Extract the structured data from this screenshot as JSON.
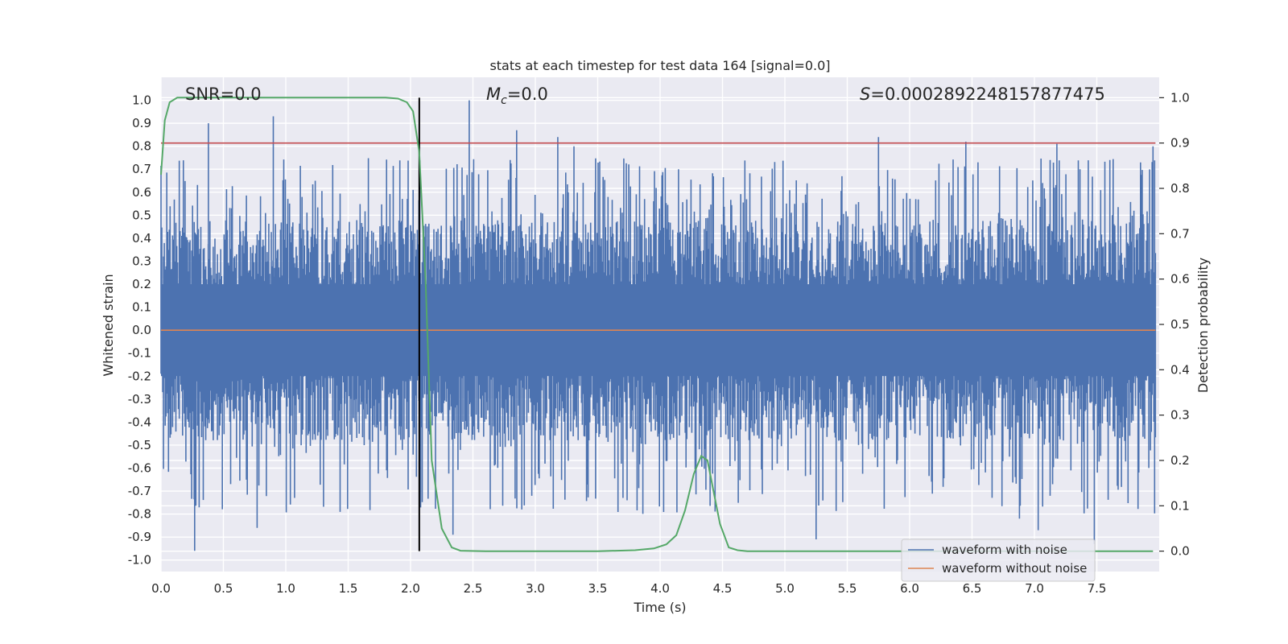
{
  "chart_data": {
    "type": "line",
    "title": "stats at each timestep for test data 164 [signal=0.0]",
    "xlabel": "Time (s)",
    "ylabel_left": "Whitened strain",
    "ylabel_right": "Detection probability",
    "xlim": [
      0.0,
      8.0
    ],
    "ylim_left": [
      -1.05,
      1.1
    ],
    "ylim_right": [
      -0.045,
      1.045
    ],
    "x_ticks": [
      "0.0",
      "0.5",
      "1.0",
      "1.5",
      "2.0",
      "2.5",
      "3.0",
      "3.5",
      "4.0",
      "4.5",
      "5.0",
      "5.5",
      "6.0",
      "6.5",
      "7.0",
      "7.5"
    ],
    "x_tick_values": [
      0.0,
      0.5,
      1.0,
      1.5,
      2.0,
      2.5,
      3.0,
      3.5,
      4.0,
      4.5,
      5.0,
      5.5,
      6.0,
      6.5,
      7.0,
      7.5
    ],
    "y_left_ticks": [
      "1.0",
      "0.9",
      "0.8",
      "0.7",
      "0.6",
      "0.5",
      "0.4",
      "0.3",
      "0.2",
      "0.1",
      "0.0",
      "-0.1",
      "-0.2",
      "-0.3",
      "-0.4",
      "-0.5",
      "-0.6",
      "-0.7",
      "-0.8",
      "-0.9",
      "-1.0"
    ],
    "y_left_tick_values": [
      1.0,
      0.9,
      0.8,
      0.7,
      0.6,
      0.5,
      0.4,
      0.3,
      0.2,
      0.1,
      0.0,
      -0.1,
      -0.2,
      -0.3,
      -0.4,
      -0.5,
      -0.6,
      -0.7,
      -0.8,
      -0.9,
      -1.0
    ],
    "y_right_ticks": [
      "1.0",
      "0.9",
      "0.8",
      "0.7",
      "0.6",
      "0.5",
      "0.4",
      "0.3",
      "0.2",
      "0.1",
      "0.0"
    ],
    "y_right_tick_values": [
      1.0,
      0.9,
      0.8,
      0.7,
      0.6,
      0.5,
      0.4,
      0.3,
      0.2,
      0.1,
      0.0
    ],
    "grid": true,
    "legend_position": "lower-right",
    "annotations": {
      "snr": "SNR=0.0",
      "mc_symbol": "M",
      "mc_sub": "c",
      "mc_value": "=0.0",
      "s_symbol": "S",
      "s_value": "=0.0002892248157877475"
    },
    "series": [
      {
        "name": "waveform with noise",
        "color": "#4c72b0",
        "description_kind": "noise",
        "sample_count": 1200,
        "band_envelope": {
          "typical_high": 0.4,
          "typical_low": -0.4
        },
        "peaks": [
          [
            0.38,
            0.9
          ],
          [
            0.9,
            0.93
          ],
          [
            0.27,
            -0.96
          ],
          [
            0.77,
            -0.86
          ],
          [
            2.47,
            1.0
          ],
          [
            2.85,
            0.87
          ],
          [
            3.18,
            0.84
          ],
          [
            3.31,
            0.8
          ],
          [
            5.75,
            0.84
          ],
          [
            6.45,
            0.82
          ],
          [
            7.18,
            0.81
          ],
          [
            7.48,
            -0.93
          ],
          [
            2.34,
            -0.89
          ],
          [
            6.88,
            -0.82
          ],
          [
            7.03,
            -0.87
          ],
          [
            5.25,
            -0.91
          ],
          [
            7.95,
            0.8
          ]
        ]
      },
      {
        "name": "waveform without noise",
        "color": "#dd8452",
        "values_constant": 0.0
      },
      {
        "name": "",
        "color": "#55a868",
        "axis": "right",
        "x": [
          0.0,
          0.03,
          0.07,
          0.13,
          0.2,
          0.4,
          1.0,
          1.5,
          1.8,
          1.9,
          1.97,
          2.02,
          2.07,
          2.12,
          2.17,
          2.25,
          2.33,
          2.4,
          2.6,
          3.0,
          3.5,
          3.8,
          3.95,
          4.05,
          4.13,
          4.2,
          4.27,
          4.33,
          4.38,
          4.43,
          4.48,
          4.55,
          4.62,
          4.7,
          5.0,
          6.0,
          7.0,
          7.95
        ],
        "values": [
          0.83,
          0.95,
          0.99,
          1.0,
          1.0,
          1.0,
          1.0,
          1.0,
          1.0,
          0.998,
          0.99,
          0.97,
          0.88,
          0.6,
          0.2,
          0.05,
          0.008,
          0.001,
          0.0,
          0.0,
          0.0,
          0.002,
          0.006,
          0.015,
          0.035,
          0.09,
          0.17,
          0.21,
          0.2,
          0.13,
          0.06,
          0.008,
          0.002,
          0.0,
          0.0,
          0.0,
          0.0,
          0.0
        ]
      }
    ],
    "threshold_line": {
      "axis": "right",
      "value": 0.9,
      "color": "#c44e52"
    },
    "vertical_marker": {
      "x": 2.07,
      "color": "#000000"
    }
  }
}
